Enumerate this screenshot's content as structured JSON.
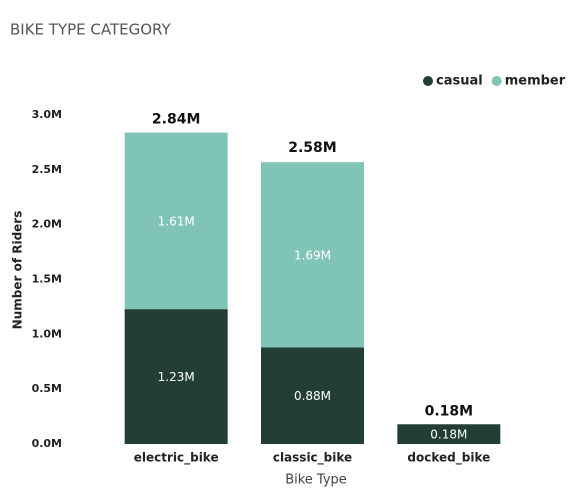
{
  "chart_data": {
    "type": "stacked_bar",
    "title": "BIKE TYPE CATEGORY",
    "xlabel": "Bike Type",
    "ylabel": "Number of Riders",
    "categories": [
      "electric_bike",
      "classic_bike",
      "docked_bike"
    ],
    "series": [
      {
        "name": "casual",
        "color": "#233f35",
        "values": [
          1230000,
          880000,
          180000
        ],
        "value_labels": [
          "1.23M",
          "0.88M",
          "0.18M"
        ]
      },
      {
        "name": "member",
        "color": "#80c4b7",
        "values": [
          1610000,
          1690000,
          0
        ],
        "value_labels": [
          "1.61M",
          "1.69M",
          null
        ]
      }
    ],
    "totals": [
      2840000,
      2580000,
      180000
    ],
    "total_labels": [
      "2.84M",
      "2.58M",
      "0.18M"
    ],
    "ylim": [
      0,
      3000000
    ],
    "yticks": [
      {
        "value": 0,
        "label": "0.0M"
      },
      {
        "value": 500000,
        "label": "0.5M"
      },
      {
        "value": 1000000,
        "label": "1.0M"
      },
      {
        "value": 1500000,
        "label": "1.5M"
      },
      {
        "value": 2000000,
        "label": "2.0M"
      },
      {
        "value": 2500000,
        "label": "2.5M"
      },
      {
        "value": 3000000,
        "label": "3.0M"
      }
    ],
    "legend": "top-right"
  }
}
